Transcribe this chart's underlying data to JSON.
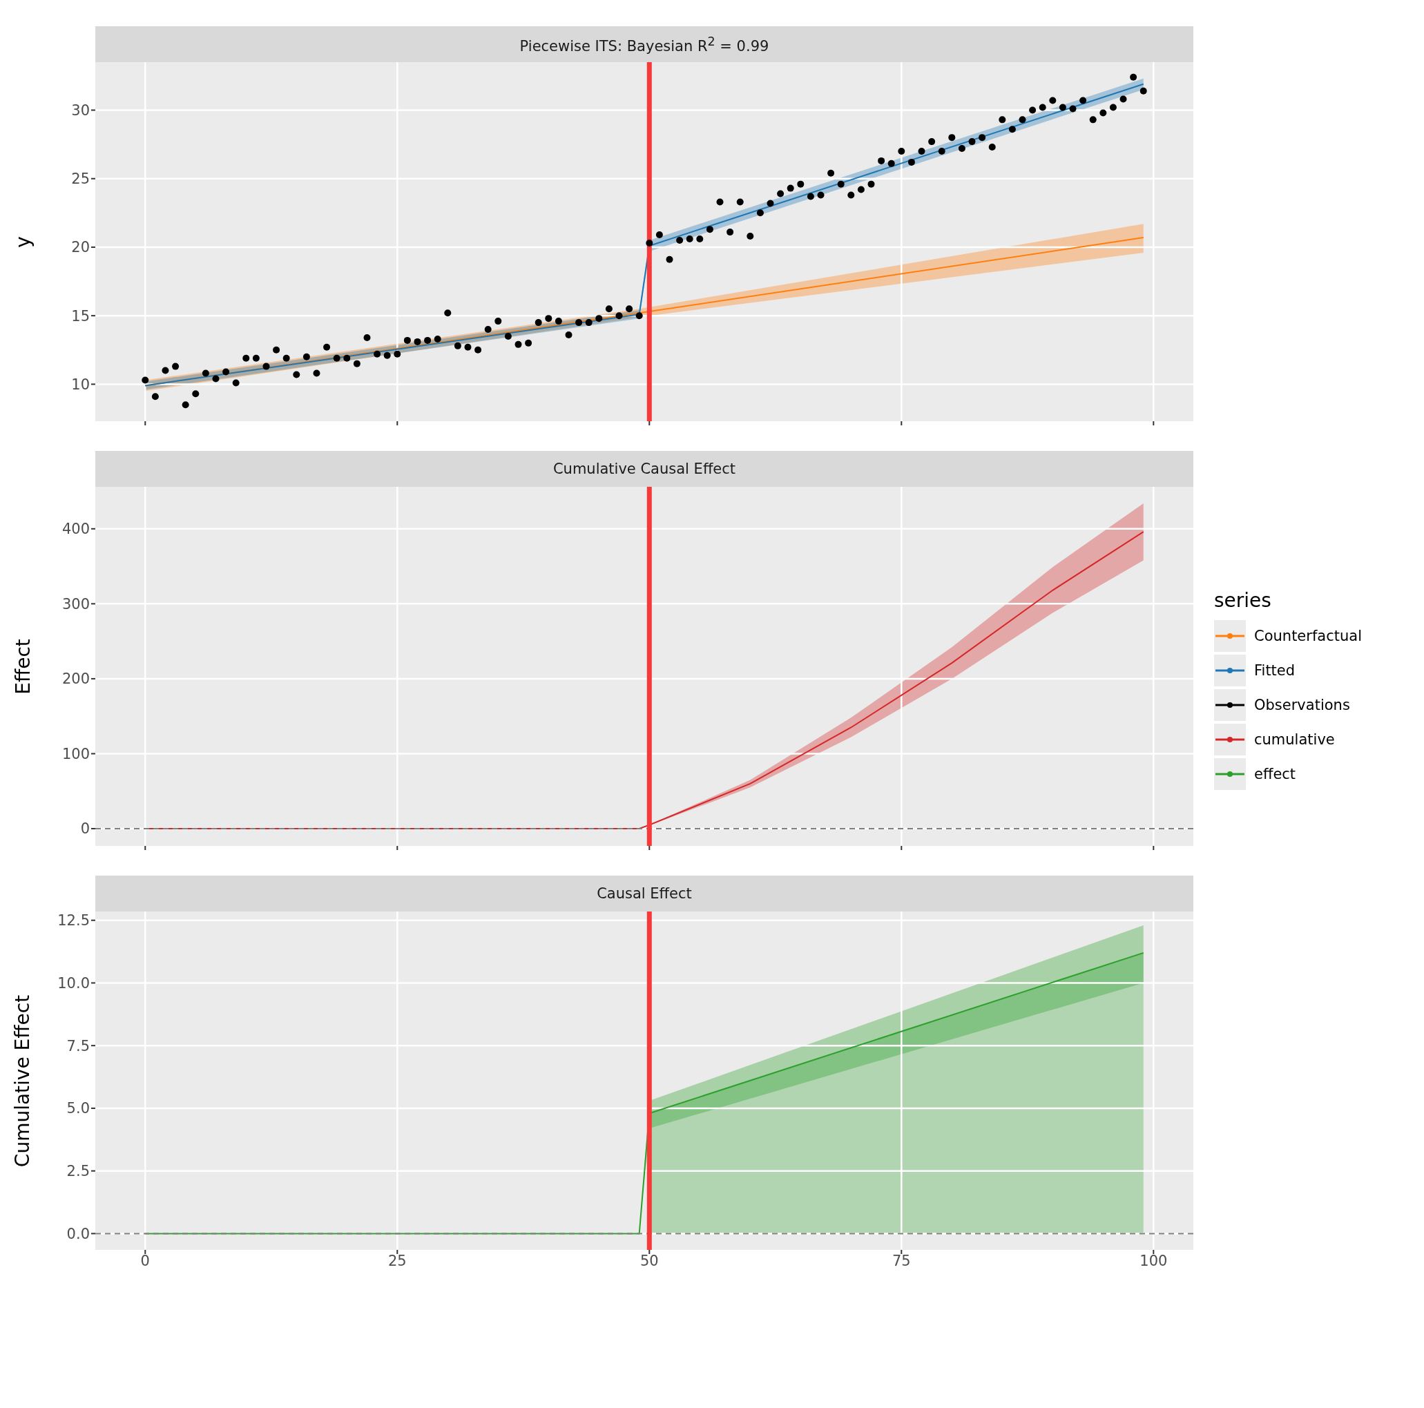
{
  "chart_data": [
    {
      "type": "line",
      "title": "Piecewise ITS: Bayesian R$^{2}$ = 0.99",
      "ylabel": "y",
      "xlim": [
        -4.95,
        103.95
      ],
      "xticks": [
        0,
        25,
        50,
        75,
        100
      ],
      "ylim": [
        7.3,
        33.5
      ],
      "yticks": [
        10,
        15,
        20,
        25,
        30
      ],
      "grid": true,
      "tick_labels": "y",
      "legend": "right",
      "ref_lines": [
        {
          "axis": "x",
          "value": 50,
          "color": "#f8393a"
        }
      ],
      "series": [
        {
          "name": "Counterfactual",
          "color": "#ff7f0e",
          "x": [
            0,
            49,
            99
          ],
          "values": [
            9.9,
            15.2,
            20.7
          ],
          "lower": [
            9.5,
            14.9,
            19.6
          ],
          "upper": [
            10.3,
            15.5,
            21.7
          ]
        },
        {
          "name": "Fitted",
          "color": "#1f77b4",
          "x": [
            0,
            49,
            50,
            99
          ],
          "values": [
            9.9,
            15.1,
            20.1,
            31.9
          ],
          "lower": [
            9.6,
            14.8,
            19.7,
            31.5
          ],
          "upper": [
            10.2,
            15.4,
            20.5,
            32.3
          ]
        },
        {
          "name": "Observations",
          "type": "scatter",
          "marker": "circle",
          "color": "#000000",
          "x": [
            0,
            1,
            2,
            3,
            4,
            5,
            6,
            7,
            8,
            9,
            10,
            11,
            12,
            13,
            14,
            15,
            16,
            17,
            18,
            19,
            20,
            21,
            22,
            23,
            24,
            25,
            26,
            27,
            28,
            29,
            30,
            31,
            32,
            33,
            34,
            35,
            36,
            37,
            38,
            39,
            40,
            41,
            42,
            43,
            44,
            45,
            46,
            47,
            48,
            49,
            50,
            51,
            52,
            53,
            54,
            55,
            56,
            57,
            58,
            59,
            60,
            61,
            62,
            63,
            64,
            65,
            66,
            67,
            68,
            69,
            70,
            71,
            72,
            73,
            74,
            75,
            76,
            77,
            78,
            79,
            80,
            81,
            82,
            83,
            84,
            85,
            86,
            87,
            88,
            89,
            90,
            91,
            92,
            93,
            94,
            95,
            96,
            97,
            98,
            99
          ],
          "values": [
            10.3,
            9.1,
            11.0,
            11.3,
            8.5,
            9.3,
            10.8,
            10.4,
            10.9,
            10.1,
            11.9,
            11.9,
            11.3,
            12.5,
            11.9,
            10.7,
            12.0,
            10.8,
            12.7,
            11.9,
            11.9,
            11.5,
            13.4,
            12.2,
            12.1,
            12.2,
            13.2,
            13.1,
            13.2,
            13.3,
            15.2,
            12.8,
            12.7,
            12.5,
            14.0,
            14.6,
            13.5,
            12.9,
            13.0,
            14.5,
            14.8,
            14.6,
            13.6,
            14.5,
            14.5,
            14.8,
            15.5,
            15.0,
            15.5,
            15.0,
            20.3,
            20.9,
            19.1,
            20.5,
            20.6,
            20.6,
            21.3,
            23.3,
            21.1,
            23.3,
            20.8,
            22.5,
            23.2,
            23.9,
            24.3,
            24.6,
            23.7,
            23.8,
            25.4,
            24.6,
            23.8,
            24.2,
            24.6,
            26.3,
            26.1,
            27.0,
            26.2,
            27.0,
            27.7,
            27.0,
            28.0,
            27.2,
            27.7,
            28.0,
            27.3,
            29.3,
            28.6,
            29.3,
            30.0,
            30.2,
            30.7,
            30.2,
            30.1,
            30.7,
            29.3,
            29.8,
            30.2,
            30.8,
            32.4,
            31.4
          ]
        }
      ]
    },
    {
      "type": "line",
      "title": "Cumulative Causal Effect",
      "ylabel": "Effect",
      "xlim": [
        -4.95,
        103.95
      ],
      "xticks": [
        0,
        25,
        50,
        75,
        100
      ],
      "ylim": [
        -23,
        456
      ],
      "yticks": [
        0,
        100,
        200,
        300,
        400
      ],
      "grid": true,
      "tick_labels": "y",
      "legend": "right",
      "legend_title": "series",
      "ref_lines": [
        {
          "axis": "x",
          "value": 50,
          "color": "#f8393a"
        },
        {
          "axis": "y",
          "value": 0,
          "color": "#7f7f7f",
          "line_style": "dashed"
        }
      ],
      "series": [
        {
          "name": "cumulative",
          "color": "#d62728",
          "x": [
            0,
            49,
            50,
            60,
            70,
            80,
            90,
            99
          ],
          "values": [
            0,
            0,
            5,
            60,
            135,
            221,
            318,
            396
          ],
          "lower": [
            0,
            0,
            4.2,
            55,
            122,
            200,
            288,
            358
          ],
          "upper": [
            0,
            0,
            5.3,
            65,
            148,
            242,
            349,
            434
          ]
        }
      ]
    },
    {
      "type": "line",
      "title": "Causal Effect",
      "ylabel": "Cumulative Effect",
      "xlim": [
        -4.95,
        103.95
      ],
      "xticks": [
        0,
        25,
        50,
        75,
        100
      ],
      "ylim": [
        -0.65,
        12.85
      ],
      "yticks": [
        {
          "value": 0,
          "label": "0.0"
        },
        {
          "value": 2.5,
          "label": "2.5"
        },
        {
          "value": 5,
          "label": "5.0"
        },
        {
          "value": 7.5,
          "label": "7.5"
        },
        {
          "value": 10,
          "label": "10.0"
        },
        {
          "value": 12.5,
          "label": "12.5"
        }
      ],
      "grid": true,
      "legend": "right",
      "ref_lines": [
        {
          "axis": "x",
          "value": 50,
          "color": "#f8393a"
        },
        {
          "axis": "y",
          "value": 0,
          "color": "#7f7f7f",
          "line_style": "dashed"
        }
      ],
      "series": [
        {
          "type": "area",
          "color": "#2ca02c",
          "x": [
            50,
            99
          ],
          "values": [
            4.8,
            11.2
          ]
        },
        {
          "name": "effect",
          "color": "#2ca02c",
          "x": [
            0,
            49,
            50,
            99
          ],
          "values": [
            0,
            0,
            4.8,
            11.2
          ],
          "lower": [
            0,
            0,
            4.2,
            10.0
          ],
          "upper": [
            0,
            0,
            5.3,
            12.3
          ]
        }
      ]
    }
  ]
}
